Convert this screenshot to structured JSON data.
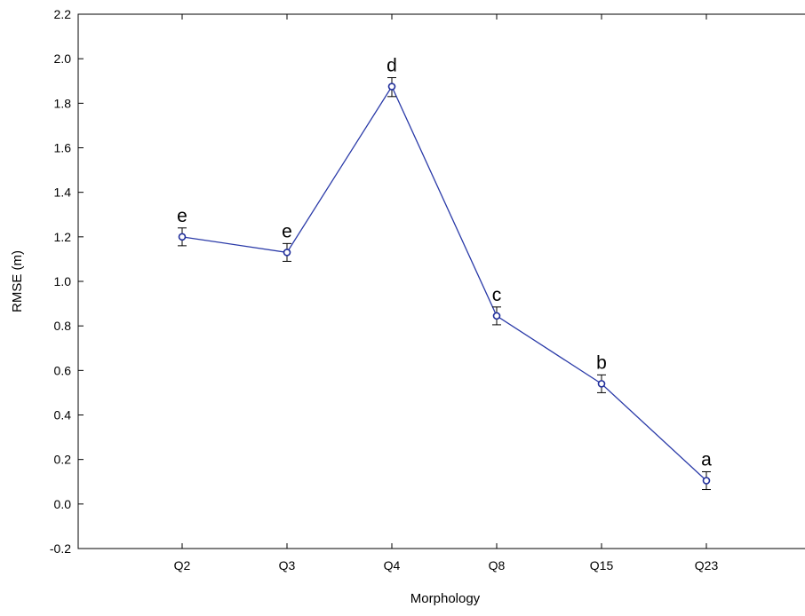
{
  "chart_data": {
    "type": "line",
    "title": "",
    "xlabel": "Morphology",
    "ylabel": "RMSE (m)",
    "categories": [
      "Q2",
      "Q3",
      "Q4",
      "Q8",
      "Q15",
      "Q23"
    ],
    "series": [
      {
        "values": [
          1.2,
          1.13,
          1.875,
          0.845,
          0.54,
          0.105
        ],
        "error_low": [
          1.16,
          1.09,
          1.83,
          0.805,
          0.5,
          0.065
        ],
        "error_high": [
          1.24,
          1.17,
          1.915,
          0.885,
          0.58,
          0.145
        ],
        "letters": [
          "e",
          "e",
          "d",
          "c",
          "b",
          "a"
        ]
      }
    ],
    "ylim": [
      -0.2,
      2.2
    ],
    "yticks": [
      "-0.2",
      "0.0",
      "0.2",
      "0.4",
      "0.6",
      "0.8",
      "1.0",
      "1.2",
      "1.4",
      "1.6",
      "1.8",
      "2.0",
      "2.2"
    ],
    "grid": false,
    "colors": {
      "line": "#2a3aa8",
      "marker": "#1f2d9a",
      "axis": "#000000"
    }
  }
}
